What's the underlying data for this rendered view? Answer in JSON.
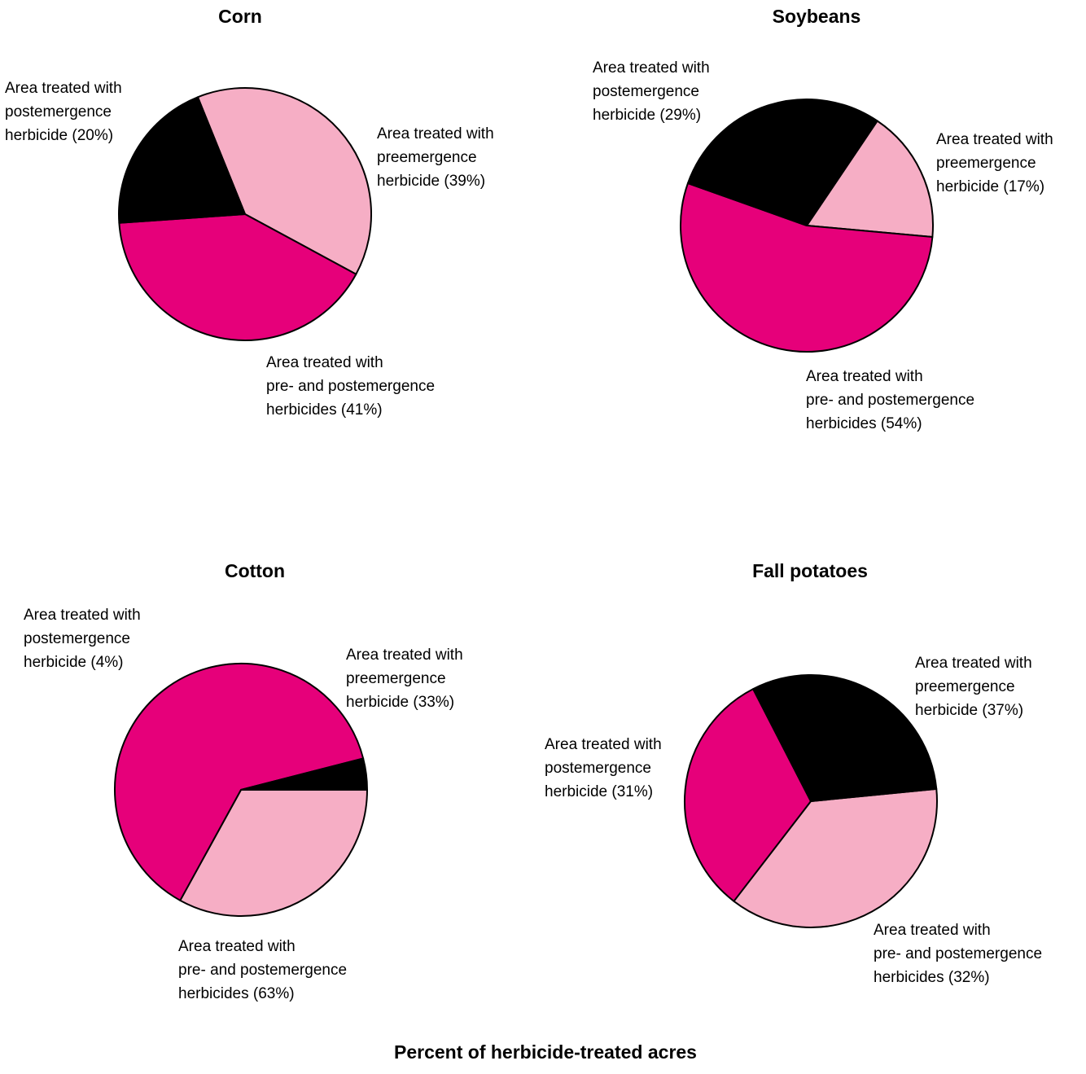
{
  "chart_data": [
    {
      "type": "pie",
      "title": "Corn",
      "colors": {
        "pre": "#f6aec5",
        "prepost": "#e6007a",
        "post": "#000000"
      },
      "slices": [
        {
          "key": "pre",
          "value": 39,
          "label": [
            "Area treated with",
            "preemergence",
            "herbicide (39%)"
          ]
        },
        {
          "key": "prepost",
          "value": 41,
          "label": [
            "Area treated with",
            "pre- and postemergence",
            "herbicides (41%)"
          ]
        },
        {
          "key": "post",
          "value": 20,
          "label": [
            "Area treated with",
            "postemergence",
            "herbicide (20%)"
          ]
        }
      ]
    },
    {
      "type": "pie",
      "title": "Soybeans",
      "colors": {
        "pre": "#f6aec5",
        "prepost": "#e6007a",
        "post": "#000000"
      },
      "slices": [
        {
          "key": "pre",
          "value": 17,
          "label": [
            "Area treated with",
            "preemergence",
            "herbicide (17%)"
          ]
        },
        {
          "key": "prepost",
          "value": 54,
          "label": [
            "Area treated with",
            "pre- and postemergence",
            "herbicides (54%)"
          ]
        },
        {
          "key": "post",
          "value": 29,
          "label": [
            "Area treated with",
            "postemergence",
            "herbicide (29%)"
          ]
        }
      ]
    },
    {
      "type": "pie",
      "title": "Cotton",
      "colors": {
        "pre": "#f6aec5",
        "prepost": "#e6007a",
        "post": "#000000"
      },
      "slices": [
        {
          "key": "pre",
          "value": 33,
          "label": [
            "Area treated with",
            "preemergence",
            "herbicide (33%)"
          ]
        },
        {
          "key": "prepost",
          "value": 63,
          "label": [
            "Area treated with",
            "pre- and postemergence",
            "herbicides (63%)"
          ]
        },
        {
          "key": "post",
          "value": 4,
          "label": [
            "Area treated with",
            "postemergence",
            "herbicide (4%)"
          ]
        }
      ]
    },
    {
      "type": "pie",
      "title": "Fall potatoes",
      "colors": {
        "pre": "#f6aec5",
        "prepost": "#e6007a",
        "post": "#000000"
      },
      "slices": [
        {
          "key": "pre",
          "value": 37,
          "label": [
            "Area treated with",
            "preemergence",
            "herbicide (37%)"
          ]
        },
        {
          "key": "prepost",
          "value": 32,
          "label": [
            "Area treated with",
            "pre- and postemergence",
            "herbicides (32%)"
          ]
        },
        {
          "key": "post",
          "value": 31,
          "label": [
            "Area treated with",
            "postemergence",
            "herbicide (31%)"
          ]
        }
      ]
    }
  ],
  "footer": "Percent of herbicide-treated acres"
}
